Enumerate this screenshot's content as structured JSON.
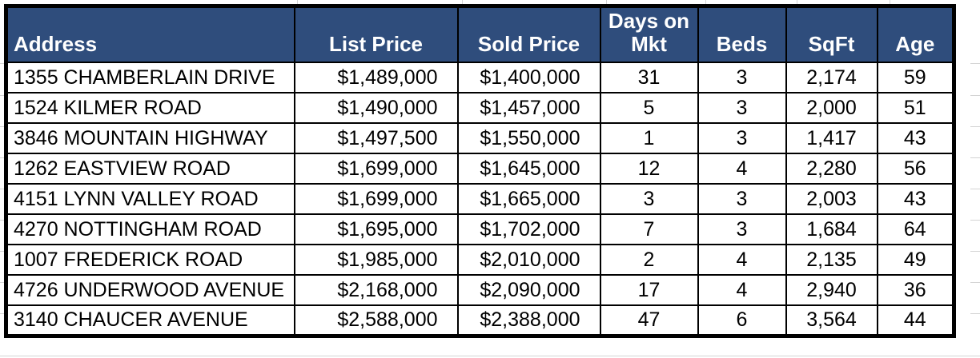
{
  "colors": {
    "header_bg": "#2F4D7C",
    "header_text": "#FFFFFF",
    "grid_border": "#000000",
    "cell_bg": "#FFFFFF",
    "cell_text": "#000000",
    "outside_gridline": "#D4D4D4"
  },
  "table": {
    "columns": [
      {
        "id": "address",
        "label": "Address"
      },
      {
        "id": "list-price",
        "label": "List Price"
      },
      {
        "id": "sold-price",
        "label": "Sold Price"
      },
      {
        "id": "days-on-mkt",
        "label": "Days on Mkt"
      },
      {
        "id": "beds",
        "label": "Beds"
      },
      {
        "id": "sqft",
        "label": "SqFt"
      },
      {
        "id": "age",
        "label": "Age"
      }
    ],
    "rows": [
      [
        "1355 CHAMBERLAIN DRIVE",
        "$1,489,000",
        "$1,400,000",
        "31",
        "3",
        "2,174",
        "59"
      ],
      [
        "1524 KILMER ROAD",
        "$1,490,000",
        "$1,457,000",
        "5",
        "3",
        "2,000",
        "51"
      ],
      [
        "3846 MOUNTAIN HIGHWAY",
        "$1,497,500",
        "$1,550,000",
        "1",
        "3",
        "1,417",
        "43"
      ],
      [
        "1262 EASTVIEW ROAD",
        "$1,699,000",
        "$1,645,000",
        "12",
        "4",
        "2,280",
        "56"
      ],
      [
        "4151 LYNN VALLEY ROAD",
        "$1,699,000",
        "$1,665,000",
        "3",
        "3",
        "2,003",
        "43"
      ],
      [
        "4270 NOTTINGHAM ROAD",
        "$1,695,000",
        "$1,702,000",
        "7",
        "3",
        "1,684",
        "64"
      ],
      [
        "1007 FREDERICK ROAD",
        "$1,985,000",
        "$2,010,000",
        "2",
        "4",
        "2,135",
        "49"
      ],
      [
        "4726 UNDERWOOD AVENUE",
        "$2,168,000",
        "$2,090,000",
        "17",
        "4",
        "2,940",
        "36"
      ],
      [
        "3140 CHAUCER AVENUE",
        "$2,588,000",
        "$2,388,000",
        "47",
        "6",
        "3,564",
        "44"
      ]
    ]
  }
}
